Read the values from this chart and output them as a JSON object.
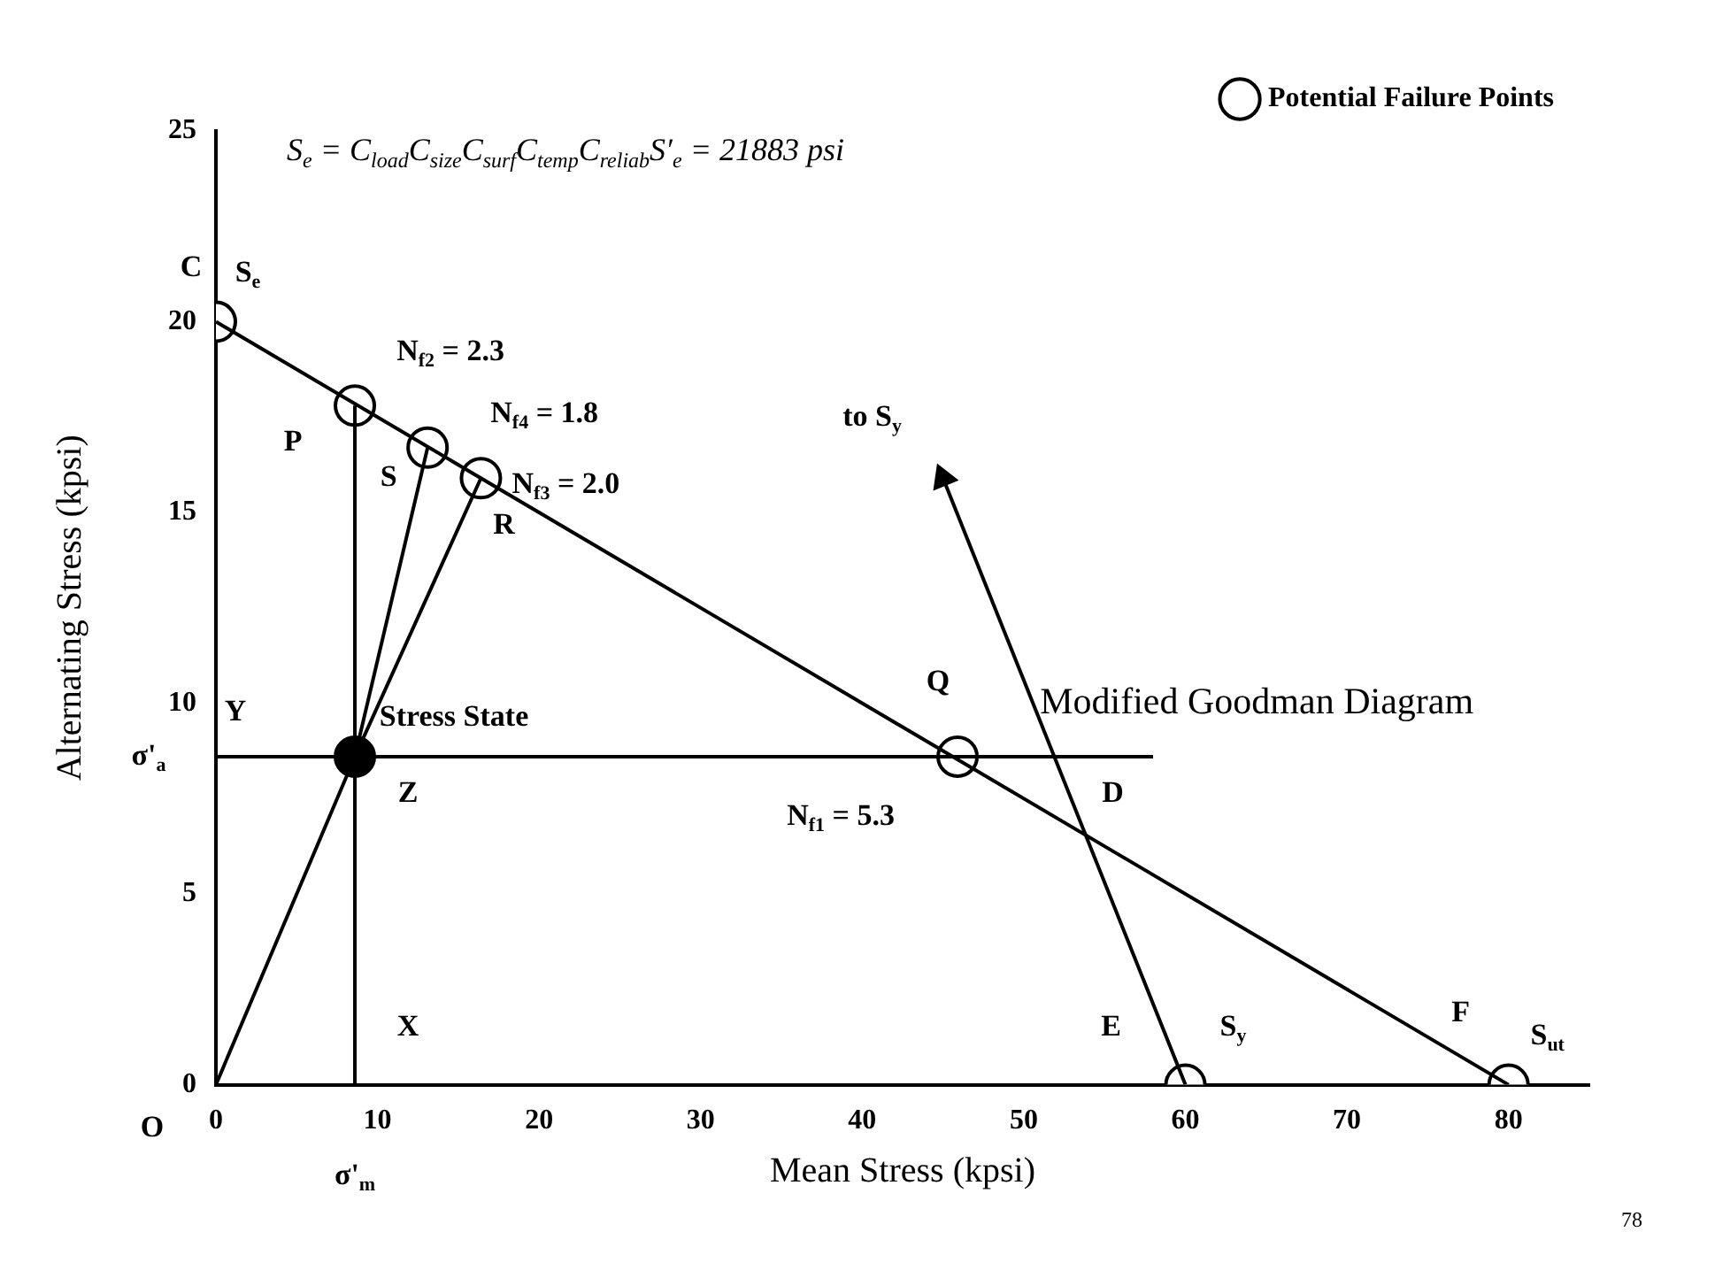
{
  "chart_data": {
    "type": "line",
    "title": "Modified Goodman Diagram",
    "subtitle": "S$_{e}$ = C$_{load}$C$_{size}$C$_{surf}$C$_{temp}$C$_{reliab}$S′$_{e}$ = 21883 psi",
    "xlabel": "Mean Stress (kpsi)",
    "ylabel": "Alternating Stress (kpsi)",
    "xlim": [
      0,
      85
    ],
    "xticks": [
      0,
      10,
      20,
      30,
      40,
      50,
      60,
      70,
      80
    ],
    "ylim": [
      0,
      25
    ],
    "yticks": [
      0,
      5,
      10,
      15,
      20,
      25
    ],
    "grid": false,
    "legend": "top right",
    "series": [
      {
        "color": "#000000",
        "x": [
          0,
          80
        ],
        "values": [
          20,
          0
        ],
        "marker": "none"
      },
      {
        "color": "#000000",
        "x": [
          0,
          58
        ],
        "values": [
          8.6,
          8.6
        ],
        "marker": "none"
      },
      {
        "color": "#000000",
        "x": [
          8.6,
          8.6
        ],
        "values": [
          0,
          17.8
        ],
        "marker": "none"
      },
      {
        "color": "#000000",
        "x": [
          0,
          8.6
        ],
        "values": [
          0,
          8.6
        ],
        "marker": "none"
      },
      {
        "color": "#000000",
        "x": [
          8.6,
          13.1
        ],
        "values": [
          8.6,
          16.7
        ],
        "marker": "none"
      },
      {
        "color": "#000000",
        "x": [
          8.6,
          16.4
        ],
        "values": [
          8.6,
          15.9
        ],
        "marker": "none"
      },
      {
        "color": "#000000",
        "x": [
          60,
          45
        ],
        "values": [
          0,
          15.9
        ],
        "marker": "triangle"
      },
      {
        "type": "scatter",
        "color": "#000000",
        "x": [
          8.6
        ],
        "values": [
          8.6
        ],
        "marker": "circle"
      },
      {
        "type": "scatter",
        "name": "Potential Failure Points",
        "color": "#ffffff",
        "x": [
          0,
          8.6,
          13.1,
          16.4,
          45.9,
          60,
          80
        ],
        "values": [
          20,
          17.8,
          16.7,
          15.9,
          8.6,
          0,
          0
        ],
        "marker": "circle"
      }
    ],
    "annotations": [
      {
        "text": "C",
        "x": 0,
        "y": 20
      },
      {
        "text": "S$_{e}$",
        "x": 0,
        "y": 20
      },
      {
        "text": "N$_{f2}$ = 2.3",
        "x": 8.6,
        "y": 17.8
      },
      {
        "text": "N$_{f4}$ = 1.8",
        "x": 13.1,
        "y": 16.7
      },
      {
        "text": "N$_{f3}$ = 2.0",
        "x": 16.4,
        "y": 15.9
      },
      {
        "text": "P",
        "x": 8.6,
        "y": 17.8
      },
      {
        "text": "S",
        "x": 13.1,
        "y": 16.7
      },
      {
        "text": "R",
        "x": 16.4,
        "y": 15.9
      },
      {
        "text": "Stress State",
        "x": 8.6,
        "y": 8.6
      },
      {
        "text": "Y",
        "x": 0,
        "y": 8.6
      },
      {
        "text": "σ'$_{a}$",
        "x": 0,
        "y": 8.6
      },
      {
        "text": "Z",
        "x": 8.6,
        "y": 8.6
      },
      {
        "text": "Q",
        "x": 45.9,
        "y": 8.6
      },
      {
        "text": "N$_{f1}$ = 5.3",
        "x": 45.9,
        "y": 8.6
      },
      {
        "text": "D",
        "x": 51.9,
        "y": 8.6
      },
      {
        "text": "to S$_{y}$",
        "x": 45,
        "y": 15.9
      },
      {
        "text": "X",
        "x": 8.6,
        "y": 0
      },
      {
        "text": "E",
        "x": 60,
        "y": 0
      },
      {
        "text": "S$_{y}$",
        "x": 60,
        "y": 0
      },
      {
        "text": "F",
        "x": 80,
        "y": 0
      },
      {
        "text": "S$_{ut}$",
        "x": 80,
        "y": 0
      },
      {
        "text": "O",
        "x": 0,
        "y": 0
      },
      {
        "text": "σ'$_{m}$",
        "x": 8.6,
        "y": 0
      },
      "78"
    ]
  }
}
